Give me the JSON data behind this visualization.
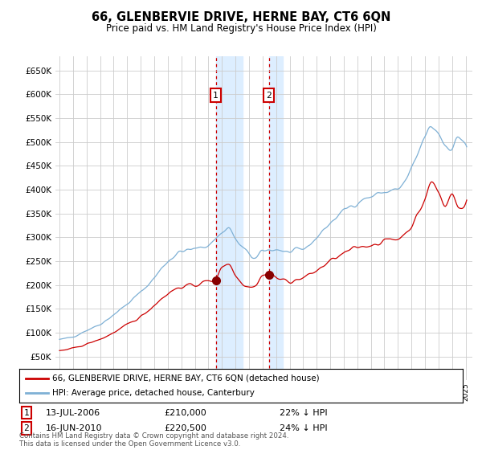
{
  "title": "66, GLENBERVIE DRIVE, HERNE BAY, CT6 6QN",
  "subtitle": "Price paid vs. HM Land Registry's House Price Index (HPI)",
  "legend_line1": "66, GLENBERVIE DRIVE, HERNE BAY, CT6 6QN (detached house)",
  "legend_line2": "HPI: Average price, detached house, Canterbury",
  "annotation1": {
    "num": "1",
    "date": "13-JUL-2006",
    "price": "£210,000",
    "pct": "22% ↓ HPI"
  },
  "annotation2": {
    "num": "2",
    "date": "16-JUN-2010",
    "price": "£220,500",
    "pct": "24% ↓ HPI"
  },
  "footnote": "Contains HM Land Registry data © Crown copyright and database right 2024.\nThis data is licensed under the Open Government Licence v3.0.",
  "hpi_color": "#7eb0d5",
  "price_color": "#cc0000",
  "marker_color": "#880000",
  "highlight_color": "#ddeeff",
  "background_color": "#ffffff",
  "grid_color": "#cccccc",
  "ylim": [
    0,
    680000
  ],
  "yticks": [
    0,
    50000,
    100000,
    150000,
    200000,
    250000,
    300000,
    350000,
    400000,
    450000,
    500000,
    550000,
    600000,
    650000
  ],
  "sale1_x": 2006.54,
  "sale1_y": 210000,
  "sale2_x": 2010.46,
  "sale2_y": 220500,
  "shade1_xmin": 2006.54,
  "shade1_xmax": 2008.5,
  "shade2_xmin": 2010.46,
  "shade2_xmax": 2011.5,
  "xlim_min": 1994.7,
  "xlim_max": 2025.5
}
